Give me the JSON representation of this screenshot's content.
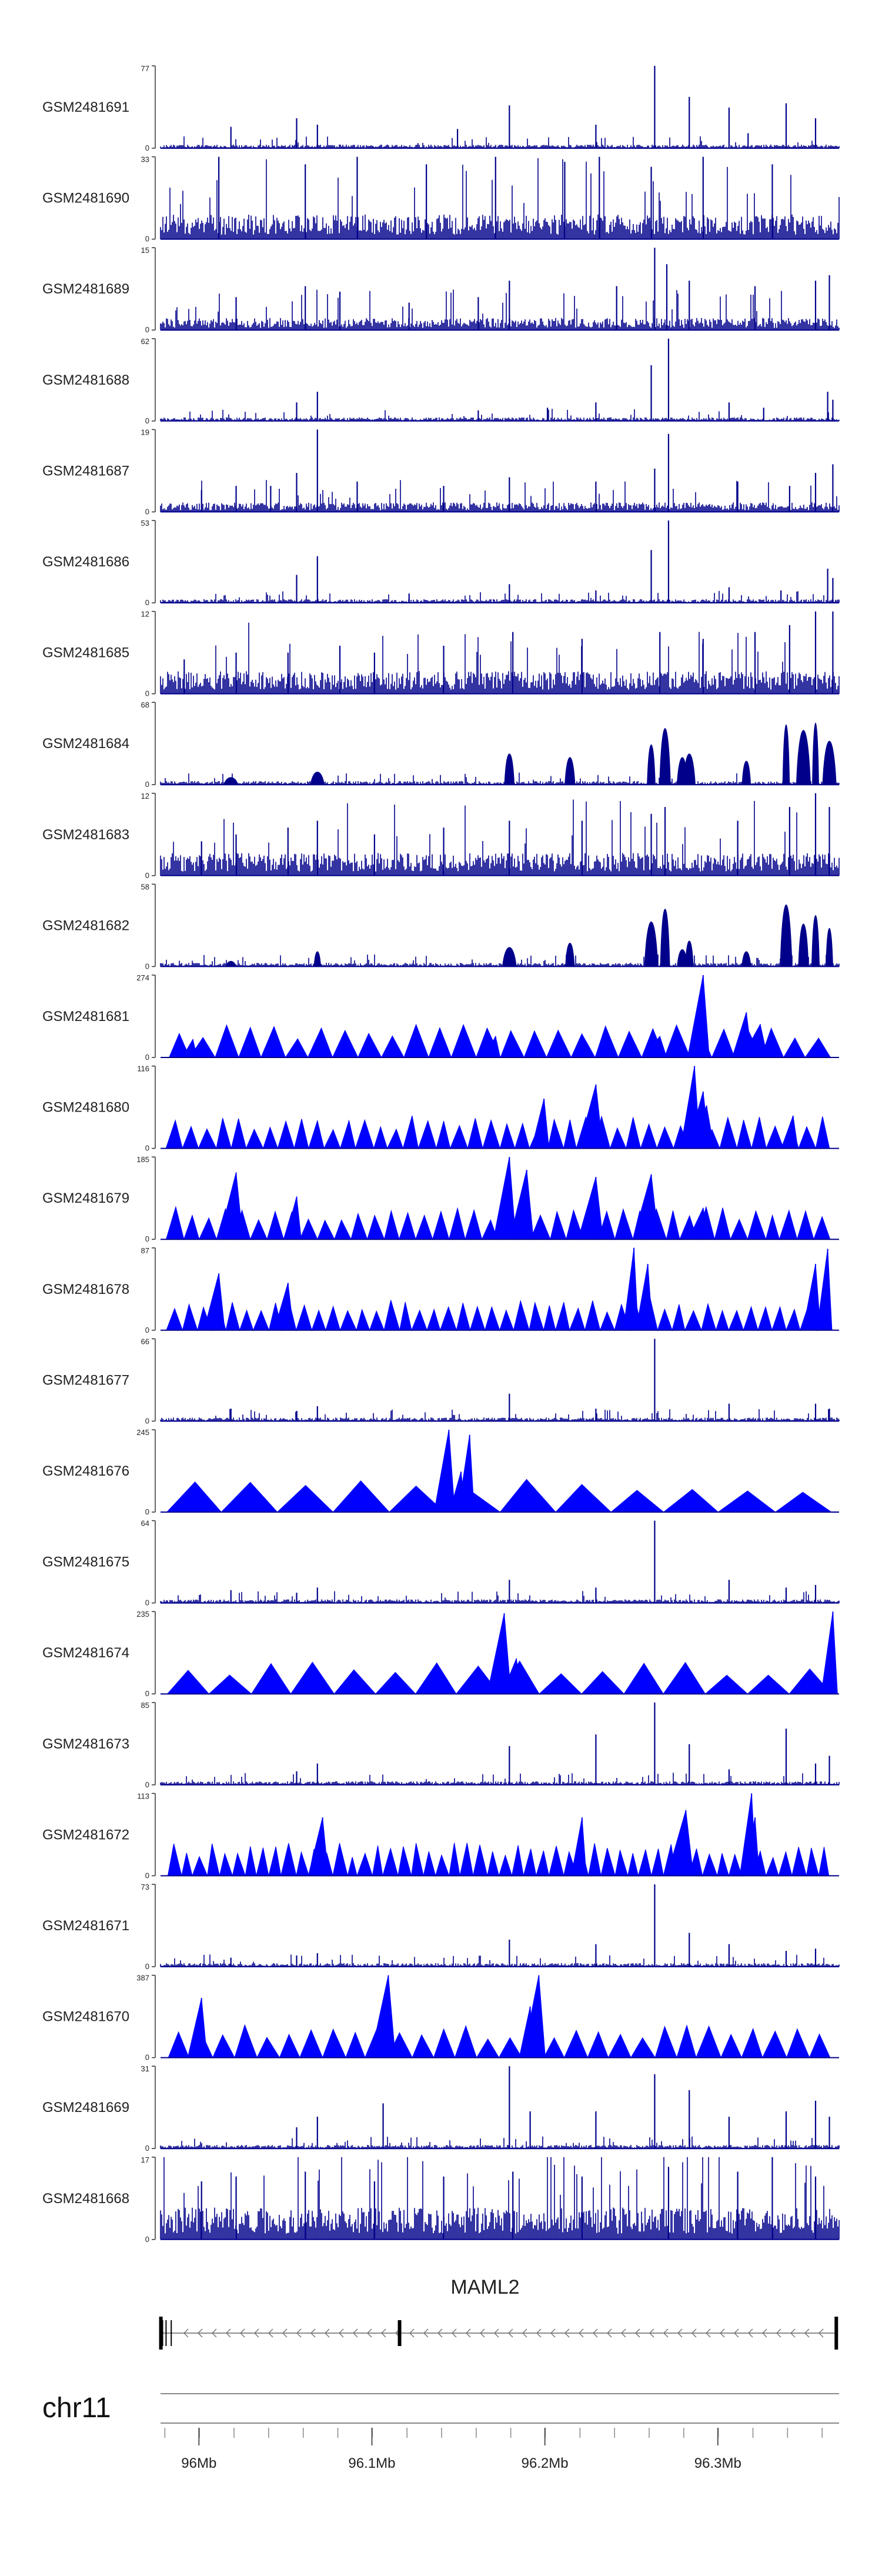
{
  "chart_data": {
    "type": "area",
    "title": "",
    "color": "#0000ff",
    "dense_color": "#00008b",
    "x_domain": [
      95.9563,
      96.3486
    ],
    "tracks": [
      {
        "name": "GSM2481691",
        "ymax": "77",
        "ymin": "0",
        "style": "dense",
        "peaks": [
          [
            95.997,
            20
          ],
          [
            96.035,
            28
          ],
          [
            96.047,
            22
          ],
          [
            96.128,
            18
          ],
          [
            96.158,
            40
          ],
          [
            96.208,
            22
          ],
          [
            96.242,
            77
          ],
          [
            96.262,
            48
          ],
          [
            96.285,
            38
          ],
          [
            96.296,
            14
          ],
          [
            96.318,
            42
          ],
          [
            96.335,
            28
          ]
        ]
      },
      {
        "name": "GSM2481690",
        "ymax": "33",
        "ymin": "0",
        "style": "dense",
        "baseline": 9,
        "peaks": [
          [
            95.99,
            33
          ],
          [
            96.04,
            30
          ],
          [
            96.07,
            33
          ],
          [
            96.11,
            30
          ],
          [
            96.15,
            33
          ],
          [
            96.19,
            31
          ],
          [
            96.21,
            33
          ],
          [
            96.24,
            29
          ],
          [
            96.27,
            33
          ],
          [
            96.31,
            30
          ]
        ]
      },
      {
        "name": "GSM2481689",
        "ymax": "15",
        "ymin": "0",
        "style": "dense",
        "baseline": 2,
        "peaks": [
          [
            96.0,
            6
          ],
          [
            96.04,
            8
          ],
          [
            96.06,
            7
          ],
          [
            96.1,
            5
          ],
          [
            96.14,
            6
          ],
          [
            96.158,
            9
          ],
          [
            96.22,
            8
          ],
          [
            96.242,
            15
          ],
          [
            96.249,
            12
          ],
          [
            96.262,
            9
          ],
          [
            96.3,
            8
          ],
          [
            96.335,
            9
          ],
          [
            96.343,
            10
          ]
        ]
      },
      {
        "name": "GSM2481688",
        "ymax": "62",
        "ymin": "0",
        "style": "dense",
        "peaks": [
          [
            96.035,
            14
          ],
          [
            96.047,
            22
          ],
          [
            96.14,
            8
          ],
          [
            96.18,
            10
          ],
          [
            96.208,
            14
          ],
          [
            96.24,
            42
          ],
          [
            96.25,
            62
          ],
          [
            96.285,
            14
          ],
          [
            96.305,
            10
          ],
          [
            96.342,
            22
          ],
          [
            96.345,
            16
          ]
        ]
      },
      {
        "name": "GSM2481687",
        "ymax": "19",
        "ymin": "0",
        "style": "dense",
        "baseline": 2,
        "peaks": [
          [
            95.98,
            5
          ],
          [
            96.0,
            6
          ],
          [
            96.02,
            6
          ],
          [
            96.035,
            9
          ],
          [
            96.047,
            19
          ],
          [
            96.07,
            7
          ],
          [
            96.12,
            6
          ],
          [
            96.158,
            8
          ],
          [
            96.208,
            7
          ],
          [
            96.242,
            10
          ],
          [
            96.25,
            18
          ],
          [
            96.29,
            7
          ],
          [
            96.32,
            6
          ],
          [
            96.335,
            9
          ],
          [
            96.345,
            11
          ]
        ]
      },
      {
        "name": "GSM2481686",
        "ymax": "53",
        "ymin": "0",
        "style": "dense",
        "peaks": [
          [
            96.035,
            18
          ],
          [
            96.047,
            30
          ],
          [
            96.1,
            6
          ],
          [
            96.158,
            12
          ],
          [
            96.208,
            8
          ],
          [
            96.24,
            34
          ],
          [
            96.25,
            53
          ],
          [
            96.285,
            10
          ],
          [
            96.315,
            8
          ],
          [
            96.342,
            22
          ],
          [
            96.345,
            16
          ]
        ]
      },
      {
        "name": "GSM2481685",
        "ymax": "12",
        "ymin": "0",
        "style": "dense",
        "baseline": 3,
        "peaks": [
          [
            95.97,
            5
          ],
          [
            96.0,
            6
          ],
          [
            96.03,
            6
          ],
          [
            96.06,
            7
          ],
          [
            96.08,
            6
          ],
          [
            96.12,
            7
          ],
          [
            96.16,
            9
          ],
          [
            96.2,
            8
          ],
          [
            96.245,
            9
          ],
          [
            96.27,
            8
          ],
          [
            96.3,
            9
          ],
          [
            96.32,
            10
          ],
          [
            96.335,
            12
          ],
          [
            96.345,
            12
          ]
        ]
      },
      {
        "name": "GSM2481684",
        "ymax": "68",
        "ymin": "0",
        "style": "peaks",
        "peaks": [
          [
            95.997,
            8
          ],
          [
            96.047,
            14
          ],
          [
            96.158,
            34
          ],
          [
            96.193,
            30
          ],
          [
            96.24,
            44
          ],
          [
            96.248,
            62
          ],
          [
            96.258,
            30
          ],
          [
            96.262,
            34
          ],
          [
            96.295,
            26
          ],
          [
            96.318,
            66
          ],
          [
            96.328,
            60
          ],
          [
            96.335,
            68
          ],
          [
            96.343,
            48
          ]
        ]
      },
      {
        "name": "GSM2481683",
        "ymax": "12",
        "ymin": "0",
        "style": "dense",
        "baseline": 3,
        "peaks": [
          [
            95.98,
            5
          ],
          [
            96.0,
            6
          ],
          [
            96.03,
            7
          ],
          [
            96.047,
            8
          ],
          [
            96.08,
            6
          ],
          [
            96.12,
            7
          ],
          [
            96.158,
            8
          ],
          [
            96.2,
            8
          ],
          [
            96.24,
            9
          ],
          [
            96.248,
            10
          ],
          [
            96.29,
            8
          ],
          [
            96.32,
            10
          ],
          [
            96.335,
            12
          ],
          [
            96.343,
            10
          ]
        ]
      },
      {
        "name": "GSM2481682",
        "ymax": "58",
        "ymin": "0",
        "style": "peaks",
        "peaks": [
          [
            95.997,
            5
          ],
          [
            96.047,
            14
          ],
          [
            96.158,
            18
          ],
          [
            96.193,
            22
          ],
          [
            96.24,
            42
          ],
          [
            96.248,
            54
          ],
          [
            96.258,
            16
          ],
          [
            96.262,
            24
          ],
          [
            96.295,
            14
          ],
          [
            96.318,
            58
          ],
          [
            96.328,
            40
          ],
          [
            96.335,
            48
          ],
          [
            96.343,
            36
          ]
        ]
      },
      {
        "name": "GSM2481681",
        "ymax": "274",
        "ymin": "0",
        "style": "sparse",
        "count": 28,
        "peaks": [
          [
            96.27,
            274
          ],
          [
            96.295,
            150
          ],
          [
            96.303,
            110
          ],
          [
            96.245,
            70
          ],
          [
            96.15,
            70
          ],
          [
            95.975,
            60
          ]
        ]
      },
      {
        "name": "GSM2481680",
        "ymax": "116",
        "ymin": "0",
        "style": "sparse",
        "count": 42,
        "peaks": [
          [
            96.265,
            116
          ],
          [
            96.27,
            80
          ],
          [
            96.208,
            90
          ],
          [
            96.178,
            70
          ],
          [
            96.272,
            60
          ],
          [
            96.322,
            46
          ]
        ]
      },
      {
        "name": "GSM2481679",
        "ymax": "185",
        "ymin": "0",
        "style": "sparse",
        "count": 40,
        "peaks": [
          [
            96.0,
            150
          ],
          [
            96.035,
            96
          ],
          [
            96.158,
            185
          ],
          [
            96.168,
            156
          ],
          [
            96.208,
            140
          ],
          [
            96.24,
            146
          ],
          [
            96.27,
            70
          ]
        ]
      },
      {
        "name": "GSM2481678",
        "ymax": "87",
        "ymin": "0",
        "style": "sparse",
        "count": 46,
        "peaks": [
          [
            96.23,
            87
          ],
          [
            96.238,
            70
          ],
          [
            96.342,
            86
          ],
          [
            96.335,
            70
          ],
          [
            95.99,
            60
          ],
          [
            96.03,
            50
          ]
        ]
      },
      {
        "name": "GSM2481677",
        "ymax": "66",
        "ymin": "0",
        "style": "dense",
        "peaks": [
          [
            95.997,
            10
          ],
          [
            96.035,
            8
          ],
          [
            96.047,
            12
          ],
          [
            96.158,
            22
          ],
          [
            96.208,
            10
          ],
          [
            96.242,
            66
          ],
          [
            96.285,
            14
          ],
          [
            96.335,
            14
          ],
          [
            96.343,
            10
          ]
        ]
      },
      {
        "name": "GSM2481676",
        "ymax": "245",
        "ymin": "0",
        "style": "sparse",
        "count": 12,
        "peaks": [
          [
            96.123,
            245
          ],
          [
            96.135,
            230
          ],
          [
            96.13,
            120
          ]
        ]
      },
      {
        "name": "GSM2481675",
        "ymax": "64",
        "ymin": "0",
        "style": "dense",
        "peaks": [
          [
            95.997,
            10
          ],
          [
            96.035,
            8
          ],
          [
            96.047,
            12
          ],
          [
            96.158,
            18
          ],
          [
            96.208,
            12
          ],
          [
            96.242,
            64
          ],
          [
            96.285,
            18
          ],
          [
            96.318,
            12
          ],
          [
            96.335,
            14
          ]
        ]
      },
      {
        "name": "GSM2481674",
        "ymax": "235",
        "ymin": "0",
        "style": "sparse",
        "count": 16,
        "peaks": [
          [
            96.155,
            230
          ],
          [
            96.162,
            100
          ],
          [
            96.345,
            235
          ]
        ]
      },
      {
        "name": "GSM2481673",
        "ymax": "85",
        "ymin": "0",
        "style": "dense",
        "peaks": [
          [
            96.035,
            14
          ],
          [
            96.047,
            22
          ],
          [
            96.158,
            40
          ],
          [
            96.208,
            52
          ],
          [
            96.242,
            85
          ],
          [
            96.262,
            42
          ],
          [
            96.285,
            16
          ],
          [
            96.318,
            58
          ],
          [
            96.335,
            22
          ],
          [
            96.343,
            30
          ]
        ]
      },
      {
        "name": "GSM2481672",
        "ymax": "113",
        "ymin": "0",
        "style": "sparse",
        "count": 52,
        "peaks": [
          [
            96.298,
            113
          ],
          [
            96.26,
            90
          ],
          [
            96.3,
            80
          ],
          [
            96.05,
            80
          ],
          [
            96.2,
            80
          ]
        ]
      },
      {
        "name": "GSM2481671",
        "ymax": "73",
        "ymin": "0",
        "style": "dense",
        "peaks": [
          [
            95.997,
            8
          ],
          [
            96.035,
            10
          ],
          [
            96.047,
            12
          ],
          [
            96.158,
            24
          ],
          [
            96.208,
            20
          ],
          [
            96.242,
            73
          ],
          [
            96.262,
            30
          ],
          [
            96.285,
            20
          ],
          [
            96.318,
            14
          ],
          [
            96.335,
            16
          ]
        ]
      },
      {
        "name": "GSM2481670",
        "ymax": "387",
        "ymin": "0",
        "style": "sparse",
        "count": 30,
        "peaks": [
          [
            95.98,
            280
          ],
          [
            96.088,
            387
          ],
          [
            96.175,
            387
          ],
          [
            96.17,
            240
          ]
        ]
      },
      {
        "name": "GSM2481669",
        "ymax": "31",
        "ymin": "0",
        "style": "dense",
        "peaks": [
          [
            96.035,
            8
          ],
          [
            96.047,
            12
          ],
          [
            96.085,
            17
          ],
          [
            96.158,
            31
          ],
          [
            96.17,
            14
          ],
          [
            96.208,
            14
          ],
          [
            96.242,
            28
          ],
          [
            96.262,
            22
          ],
          [
            96.285,
            12
          ],
          [
            96.318,
            14
          ],
          [
            96.335,
            18
          ],
          [
            96.343,
            12
          ]
        ]
      },
      {
        "name": "GSM2481668",
        "ymax": "17",
        "ymin": "0",
        "style": "dense",
        "baseline": 6,
        "peaks": [
          [
            95.98,
            12
          ],
          [
            96.0,
            13
          ],
          [
            96.04,
            14
          ],
          [
            96.08,
            12
          ],
          [
            96.12,
            13
          ],
          [
            96.16,
            14
          ],
          [
            96.2,
            13
          ],
          [
            96.25,
            15
          ],
          [
            96.29,
            14
          ],
          [
            96.31,
            17
          ],
          [
            96.335,
            13
          ]
        ]
      }
    ],
    "gene": {
      "name": "MAML2",
      "strand": "-",
      "start": 95.9563,
      "end": 96.3486,
      "exons": [
        95.9565,
        95.9575,
        95.9595,
        95.9625,
        96.0945,
        96.347
      ]
    },
    "chromosome": "chr11",
    "axis": {
      "ticks": [
        {
          "pos": 95.9785,
          "label": "96Mb"
        },
        {
          "pos": 96.0785,
          "label": "96.1Mb"
        },
        {
          "pos": 96.1785,
          "label": "96.2Mb"
        },
        {
          "pos": 96.2785,
          "label": "96.3Mb"
        }
      ],
      "minor_step": 0.02
    }
  }
}
